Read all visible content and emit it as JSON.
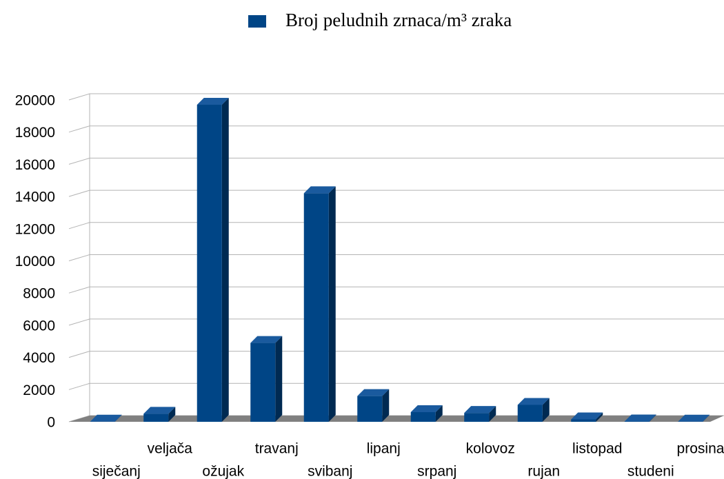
{
  "chart_data": {
    "type": "bar3d",
    "categories": [
      "siječanj",
      "veljača",
      "ožujak",
      "travanj",
      "svibanj",
      "lipanj",
      "srpanj",
      "kolovoz",
      "rujan",
      "listopad",
      "studeni",
      "prosinac"
    ],
    "series": [
      {
        "name": "Broj peludnih zrnaca/m³ zraka",
        "color": "#004586",
        "values": [
          10,
          500,
          19700,
          4900,
          14200,
          1600,
          600,
          550,
          1050,
          150,
          20,
          10
        ]
      }
    ],
    "ylim": [
      0,
      20000
    ],
    "yticks": [
      0,
      2000,
      4000,
      6000,
      8000,
      10000,
      12000,
      14000,
      16000,
      18000,
      20000
    ],
    "grid": true,
    "legend": "top"
  }
}
